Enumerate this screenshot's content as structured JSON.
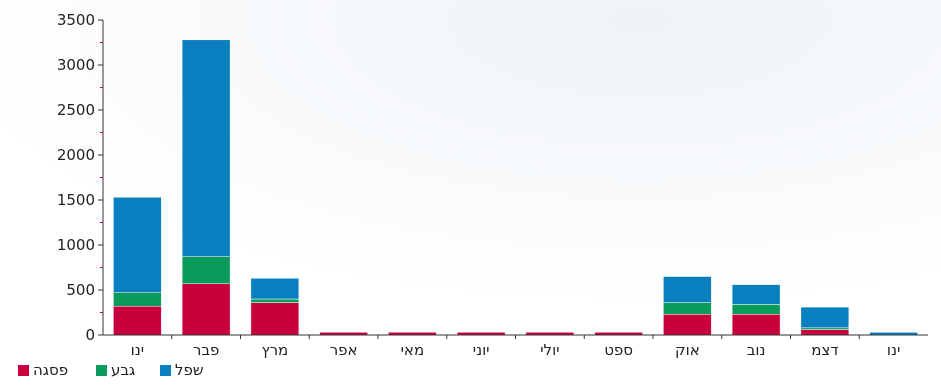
{
  "chart_data": {
    "type": "bar",
    "stacked": true,
    "categories": [
      "ינו",
      "פבר",
      "מרץ",
      "אפר",
      "מאי",
      "יוני",
      "יולי",
      "ספט",
      "אוק",
      "נוב",
      "דצמ",
      "ינו"
    ],
    "series": [
      {
        "name": "פסגה",
        "color": "#c8003c",
        "values": [
          320,
          570,
          360,
          30,
          30,
          30,
          30,
          30,
          230,
          230,
          60,
          0
        ]
      },
      {
        "name": "גבע",
        "color": "#0a9a5a",
        "values": [
          150,
          300,
          40,
          0,
          0,
          0,
          0,
          0,
          130,
          110,
          20,
          0
        ]
      },
      {
        "name": "שפל",
        "color": "#0a7fbf",
        "values": [
          1060,
          2410,
          230,
          0,
          0,
          0,
          0,
          0,
          290,
          220,
          230,
          30
        ]
      }
    ],
    "y_ticks": [
      "0",
      "500",
      "1000",
      "1500",
      "2000",
      "2500",
      "3000",
      "3500"
    ],
    "ylim": [
      0,
      3500
    ],
    "legend_position": "bottom-left",
    "grid": false,
    "axis_color": "#333333",
    "minor_tick_color": "#e0002a",
    "background_glow_color": "#f2f6fa"
  }
}
